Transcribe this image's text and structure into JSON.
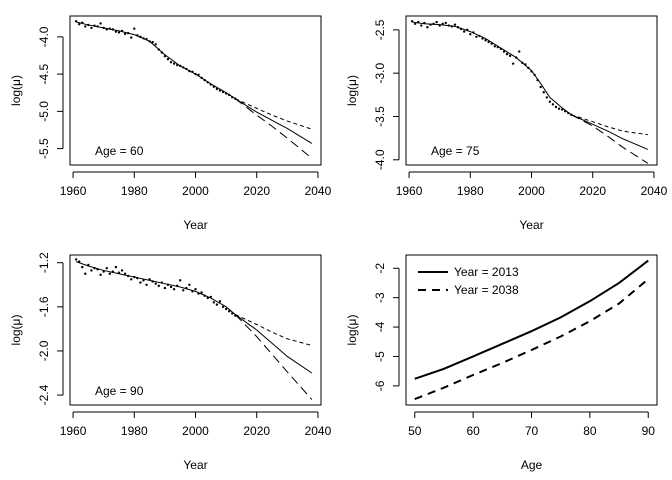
{
  "chart_data": [
    {
      "type": "scatter",
      "annotation": "Age = 60",
      "xlabel": "Year",
      "ylabel": "log(μ)",
      "xlim": [
        1959,
        2041
      ],
      "ylim": [
        -5.72,
        -3.72
      ],
      "xticks": [
        1960,
        1980,
        2000,
        2020,
        2040
      ],
      "yticks": [
        -5.5,
        -5.0,
        -4.5,
        -4.0
      ],
      "ytick_labels": [
        "-5.5",
        "-5.0",
        "-4.5",
        "-4.0"
      ],
      "observed": {
        "x": [
          1961,
          1962,
          1963,
          1964,
          1965,
          1966,
          1967,
          1968,
          1969,
          1970,
          1971,
          1972,
          1973,
          1974,
          1975,
          1976,
          1977,
          1978,
          1979,
          1980,
          1981,
          1982,
          1983,
          1984,
          1985,
          1986,
          1987,
          1988,
          1989,
          1990,
          1991,
          1992,
          1993,
          1994,
          1995,
          1996,
          1997,
          1998,
          1999,
          2000,
          2001,
          2002,
          2003,
          2004,
          2005,
          2006,
          2007,
          2008,
          2009,
          2010,
          2011,
          2012,
          2013
        ],
        "y": [
          -3.79,
          -3.83,
          -3.81,
          -3.86,
          -3.84,
          -3.88,
          -3.85,
          -3.86,
          -3.82,
          -3.88,
          -3.9,
          -3.89,
          -3.9,
          -3.93,
          -3.94,
          -3.92,
          -3.96,
          -3.95,
          -4.01,
          -3.89,
          -3.98,
          -4.0,
          -4.02,
          -4.03,
          -4.06,
          -4.07,
          -4.1,
          -4.17,
          -4.21,
          -4.26,
          -4.3,
          -4.34,
          -4.36,
          -4.38,
          -4.39,
          -4.41,
          -4.43,
          -4.46,
          -4.47,
          -4.5,
          -4.51,
          -4.55,
          -4.58,
          -4.61,
          -4.64,
          -4.67,
          -4.7,
          -4.72,
          -4.74,
          -4.76,
          -4.78,
          -4.81,
          -4.83
        ]
      },
      "fitted": {
        "x": [
          1961,
          1965,
          1970,
          1975,
          1980,
          1985,
          1990,
          1995,
          2000,
          2005,
          2010,
          2013
        ],
        "y": [
          -3.8,
          -3.84,
          -3.88,
          -3.92,
          -3.97,
          -4.06,
          -4.24,
          -4.39,
          -4.5,
          -4.63,
          -4.75,
          -4.83
        ]
      },
      "forecast_upper": {
        "x": [
          2013,
          2020,
          2025,
          2030,
          2038
        ],
        "y": [
          -4.83,
          -4.96,
          -5.05,
          -5.13,
          -5.24
        ]
      },
      "forecast_median": {
        "x": [
          2013,
          2020,
          2025,
          2030,
          2038
        ],
        "y": [
          -4.83,
          -5.01,
          -5.12,
          -5.23,
          -5.43
        ]
      },
      "forecast_lower": {
        "x": [
          2013,
          2020,
          2025,
          2030,
          2038
        ],
        "y": [
          -4.83,
          -5.05,
          -5.2,
          -5.36,
          -5.63
        ]
      }
    },
    {
      "type": "scatter",
      "annotation": "Age = 75",
      "xlabel": "Year",
      "ylabel": "log(μ)",
      "xlim": [
        1959,
        2041
      ],
      "ylim": [
        -4.06,
        -2.34
      ],
      "xticks": [
        1960,
        1980,
        2000,
        2020,
        2040
      ],
      "yticks": [
        -4.0,
        -3.5,
        -3.0,
        -2.5
      ],
      "ytick_labels": [
        "-4.0",
        "-3.5",
        "-3.0",
        "-2.5"
      ],
      "observed": {
        "x": [
          1961,
          1962,
          1963,
          1964,
          1965,
          1966,
          1967,
          1968,
          1969,
          1970,
          1971,
          1972,
          1973,
          1974,
          1975,
          1976,
          1977,
          1978,
          1979,
          1980,
          1981,
          1982,
          1983,
          1984,
          1985,
          1986,
          1987,
          1988,
          1989,
          1990,
          1991,
          1992,
          1993,
          1994,
          1995,
          1996,
          1997,
          1998,
          1999,
          2000,
          2001,
          2002,
          2003,
          2004,
          2005,
          2006,
          2007,
          2008,
          2009,
          2010,
          2011,
          2012,
          2013
        ],
        "y": [
          -2.4,
          -2.43,
          -2.41,
          -2.45,
          -2.42,
          -2.47,
          -2.44,
          -2.43,
          -2.41,
          -2.45,
          -2.43,
          -2.42,
          -2.45,
          -2.46,
          -2.44,
          -2.47,
          -2.49,
          -2.52,
          -2.5,
          -2.55,
          -2.53,
          -2.58,
          -2.57,
          -2.6,
          -2.62,
          -2.64,
          -2.66,
          -2.69,
          -2.7,
          -2.72,
          -2.75,
          -2.78,
          -2.8,
          -2.89,
          -2.82,
          -2.75,
          -2.88,
          -2.9,
          -2.94,
          -2.98,
          -3.02,
          -3.08,
          -3.16,
          -3.22,
          -3.28,
          -3.33,
          -3.36,
          -3.39,
          -3.41,
          -3.42,
          -3.44,
          -3.46,
          -3.48
        ]
      },
      "fitted": {
        "x": [
          1961,
          1965,
          1970,
          1975,
          1980,
          1985,
          1990,
          1995,
          2000,
          2003,
          2006,
          2010,
          2013
        ],
        "y": [
          -2.41,
          -2.43,
          -2.44,
          -2.46,
          -2.52,
          -2.6,
          -2.71,
          -2.82,
          -2.97,
          -3.12,
          -3.28,
          -3.4,
          -3.48
        ]
      },
      "forecast_upper": {
        "x": [
          2013,
          2020,
          2025,
          2030,
          2038
        ],
        "y": [
          -3.48,
          -3.56,
          -3.62,
          -3.67,
          -3.71
        ]
      },
      "forecast_median": {
        "x": [
          2013,
          2020,
          2025,
          2030,
          2038
        ],
        "y": [
          -3.48,
          -3.59,
          -3.67,
          -3.76,
          -3.88
        ]
      },
      "forecast_lower": {
        "x": [
          2013,
          2020,
          2025,
          2030,
          2038
        ],
        "y": [
          -3.48,
          -3.61,
          -3.73,
          -3.86,
          -4.04
        ]
      }
    },
    {
      "type": "scatter",
      "annotation": "Age = 90",
      "xlabel": "Year",
      "ylabel": "log(μ)",
      "xlim": [
        1959,
        2041
      ],
      "ylim": [
        -2.49,
        -1.13
      ],
      "xticks": [
        1960,
        1980,
        2000,
        2020,
        2040
      ],
      "yticks": [
        -2.4,
        -2.0,
        -1.6,
        -1.2
      ],
      "ytick_labels": [
        "-2.4",
        "-2.0",
        "-1.6",
        "-1.2"
      ],
      "observed": {
        "x": [
          1961,
          1962,
          1963,
          1964,
          1965,
          1966,
          1967,
          1968,
          1969,
          1970,
          1971,
          1972,
          1973,
          1974,
          1975,
          1976,
          1977,
          1978,
          1979,
          1980,
          1981,
          1982,
          1983,
          1984,
          1985,
          1986,
          1987,
          1988,
          1989,
          1990,
          1991,
          1992,
          1993,
          1994,
          1995,
          1996,
          1997,
          1998,
          1999,
          2000,
          2001,
          2002,
          2003,
          2004,
          2005,
          2006,
          2007,
          2008,
          2009,
          2010,
          2011,
          2012,
          2013
        ],
        "y": [
          -1.17,
          -1.19,
          -1.24,
          -1.3,
          -1.22,
          -1.27,
          -1.25,
          -1.26,
          -1.31,
          -1.28,
          -1.25,
          -1.3,
          -1.28,
          -1.24,
          -1.29,
          -1.27,
          -1.3,
          -1.32,
          -1.35,
          -1.33,
          -1.34,
          -1.38,
          -1.36,
          -1.4,
          -1.35,
          -1.37,
          -1.39,
          -1.41,
          -1.38,
          -1.43,
          -1.4,
          -1.42,
          -1.44,
          -1.41,
          -1.36,
          -1.45,
          -1.43,
          -1.4,
          -1.46,
          -1.44,
          -1.48,
          -1.47,
          -1.5,
          -1.52,
          -1.51,
          -1.56,
          -1.58,
          -1.55,
          -1.6,
          -1.62,
          -1.64,
          -1.66,
          -1.68
        ]
      },
      "fitted": {
        "x": [
          1961,
          1965,
          1970,
          1975,
          1980,
          1985,
          1990,
          1995,
          2000,
          2005,
          2010,
          2013
        ],
        "y": [
          -1.19,
          -1.23,
          -1.27,
          -1.3,
          -1.33,
          -1.36,
          -1.39,
          -1.42,
          -1.46,
          -1.52,
          -1.6,
          -1.67
        ]
      },
      "forecast_upper": {
        "x": [
          2013,
          2020,
          2025,
          2030,
          2038
        ],
        "y": [
          -1.67,
          -1.76,
          -1.83,
          -1.89,
          -1.95
        ]
      },
      "forecast_median": {
        "x": [
          2013,
          2020,
          2025,
          2030,
          2038
        ],
        "y": [
          -1.67,
          -1.81,
          -1.93,
          -2.05,
          -2.2
        ]
      },
      "forecast_lower": {
        "x": [
          2013,
          2020,
          2025,
          2030,
          2038
        ],
        "y": [
          -1.67,
          -1.87,
          -2.03,
          -2.19,
          -2.44
        ]
      }
    },
    {
      "type": "line",
      "xlabel": "Age",
      "ylabel": "log(μ)",
      "xlim": [
        48.5,
        91.5
      ],
      "ylim": [
        -6.65,
        -1.55
      ],
      "xticks": [
        50,
        60,
        70,
        80,
        90
      ],
      "yticks": [
        -6,
        -5,
        -4,
        -3,
        -2
      ],
      "ytick_labels": [
        "-6",
        "-5",
        "-4",
        "-3",
        "-2"
      ],
      "legend_position": "top-left",
      "series": [
        {
          "name": "Year = 2013",
          "style": "solid",
          "x": [
            50,
            55,
            60,
            65,
            70,
            75,
            80,
            85,
            90
          ],
          "y": [
            -5.76,
            -5.42,
            -5.0,
            -4.57,
            -4.14,
            -3.67,
            -3.12,
            -2.5,
            -1.74
          ]
        },
        {
          "name": "Year = 2038",
          "style": "dashed",
          "x": [
            50,
            55,
            60,
            65,
            70,
            75,
            80,
            85,
            90
          ],
          "y": [
            -6.45,
            -6.06,
            -5.63,
            -5.22,
            -4.78,
            -4.32,
            -3.8,
            -3.2,
            -2.37
          ]
        }
      ]
    }
  ]
}
